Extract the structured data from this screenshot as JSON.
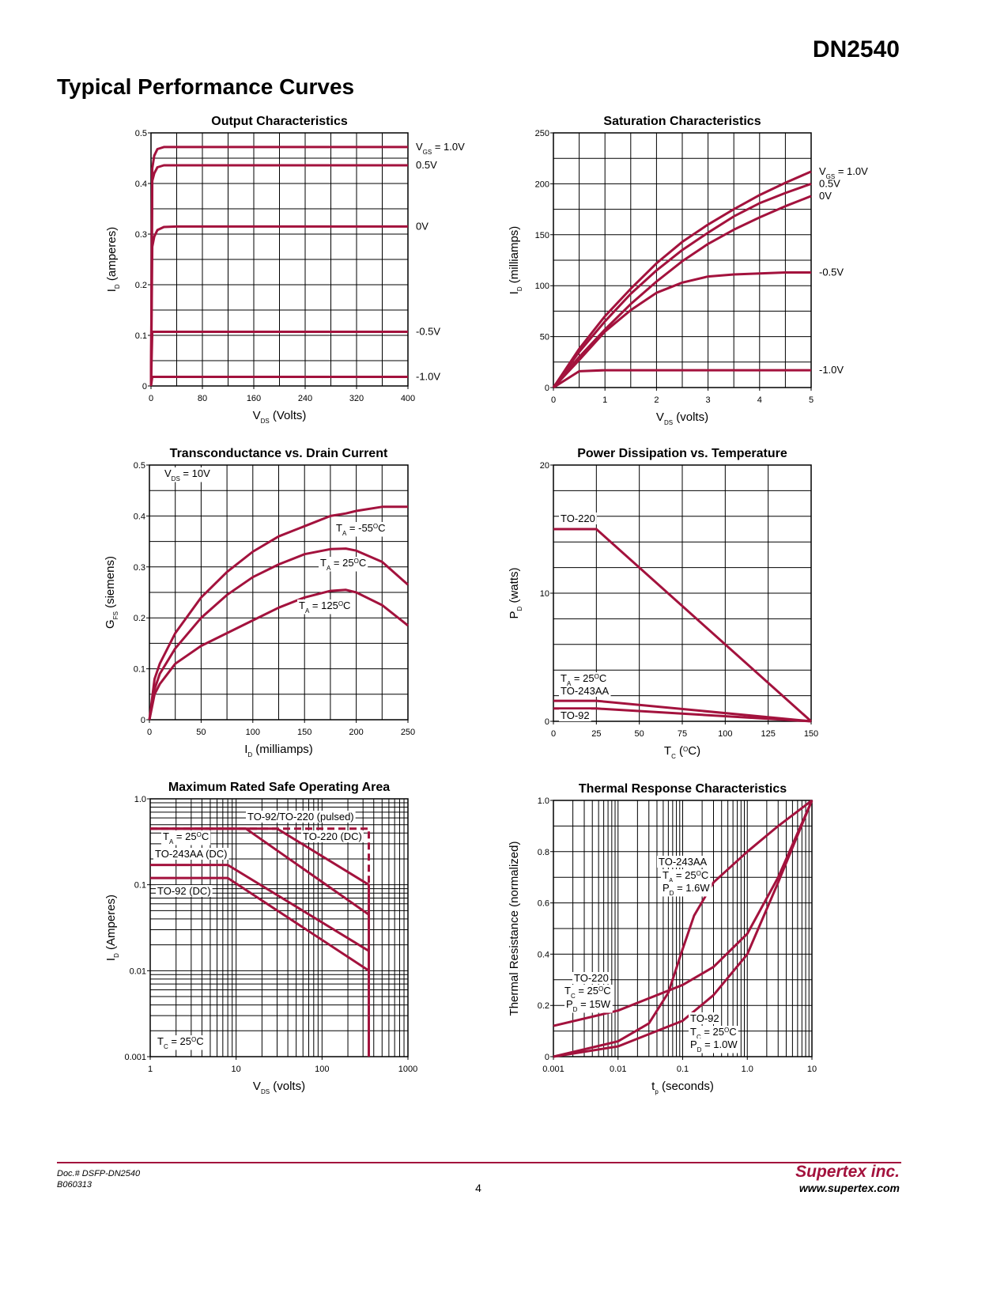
{
  "header": {
    "part": "DN2540",
    "section": "Typical Performance Curves"
  },
  "footer": {
    "doc": "Doc.# DSFP-DN2540",
    "rev": "B060313",
    "page": "4",
    "company": "Supertex inc.",
    "url": "www.supertex.com"
  },
  "chart_data": [
    {
      "type": "line",
      "title": "Output Characteristics",
      "color": "#a3123d",
      "grid": true,
      "xlabel": [
        "V",
        {
          "sub": "DS"
        },
        " (Volts)"
      ],
      "ylabel": [
        "I",
        {
          "sub": "D"
        },
        " (amperes)"
      ],
      "xlim": [
        0,
        400
      ],
      "ylim": [
        0,
        0.5
      ],
      "xticks": [
        0,
        80,
        160,
        240,
        320,
        400
      ],
      "yticks": [
        0,
        0.1,
        0.2,
        0.3,
        0.4,
        0.5
      ],
      "xminor": [
        40,
        120,
        200,
        280,
        360
      ],
      "yminor": [
        0.05,
        0.15,
        0.25,
        0.35,
        0.45
      ],
      "x": [
        0,
        2,
        5,
        10,
        20,
        40,
        400
      ],
      "series": [
        {
          "name": [
            "V",
            {
              "sub": "GS"
            },
            " = 1.0V"
          ],
          "values": [
            0,
            0.43,
            0.455,
            0.468,
            0.472,
            0.472,
            0.472
          ]
        },
        {
          "name": "0.5V",
          "values": [
            0,
            0.405,
            0.42,
            0.432,
            0.436,
            0.436,
            0.436
          ]
        },
        {
          "name": "0V",
          "values": [
            0,
            0.275,
            0.295,
            0.308,
            0.314,
            0.315,
            0.315
          ]
        },
        {
          "name": "-0.5V",
          "values": [
            0,
            0.107,
            0.107,
            0.107,
            0.107,
            0.107,
            0.107
          ]
        },
        {
          "name": "-1.0V",
          "values": [
            0,
            0.018,
            0.018,
            0.018,
            0.018,
            0.018,
            0.018
          ]
        }
      ]
    },
    {
      "type": "line",
      "title": "Saturation Characteristics",
      "color": "#a3123d",
      "grid": true,
      "xlabel": [
        "V",
        {
          "sub": "DS"
        },
        " (volts)"
      ],
      "ylabel": [
        "I",
        {
          "sub": "D"
        },
        " (milliamps)"
      ],
      "xlim": [
        0,
        5
      ],
      "ylim": [
        0,
        250
      ],
      "xticks": [
        0,
        1,
        2,
        3,
        4,
        5
      ],
      "yticks": [
        0,
        50,
        100,
        150,
        200,
        250
      ],
      "xminor": [
        0.5,
        1.5,
        2.5,
        3.5,
        4.5
      ],
      "yminor": [
        25,
        75,
        125,
        175,
        225
      ],
      "x": [
        0,
        0.5,
        1,
        1.5,
        2,
        2.5,
        3,
        3.5,
        4,
        4.5,
        5
      ],
      "series": [
        {
          "name": [
            "V",
            {
              "sub": "GS"
            },
            " = 1.0V"
          ],
          "values": [
            0,
            38,
            70,
            97,
            122,
            143,
            160,
            175,
            189,
            201,
            212
          ]
        },
        {
          "name": "0.5V",
          "values": [
            0,
            35,
            65,
            92,
            115,
            135,
            152,
            168,
            181,
            191,
            200
          ]
        },
        {
          "name": "0V",
          "values": [
            0,
            30,
            57,
            82,
            104,
            124,
            141,
            155,
            167,
            178,
            188
          ]
        },
        {
          "name": "-0.5V",
          "values": [
            0,
            27,
            55,
            76,
            93,
            103,
            109,
            111,
            112,
            113,
            113
          ]
        },
        {
          "name": "-1.0V",
          "values": [
            0,
            16,
            17,
            17,
            17,
            17,
            17,
            17,
            17,
            17,
            17
          ]
        }
      ]
    },
    {
      "type": "line",
      "title": "Transconductance vs. Drain Current",
      "color": "#a3123d",
      "grid": true,
      "xlabel": [
        "I",
        {
          "sub": "D"
        },
        " (milliamps)"
      ],
      "ylabel": [
        "G",
        {
          "sub": "FS"
        },
        " (siemens)"
      ],
      "xlim": [
        0,
        250
      ],
      "ylim": [
        0,
        0.5
      ],
      "xticks": [
        0,
        50,
        100,
        150,
        200,
        250
      ],
      "yticks": [
        0,
        0.1,
        0.2,
        0.3,
        0.4,
        0.5
      ],
      "xminor": [
        25,
        75,
        125,
        175,
        225
      ],
      "yminor": [
        0.05,
        0.15,
        0.25,
        0.35,
        0.45
      ],
      "annotations": [
        [
          "V",
          {
            "sub": "DS"
          },
          " = 10V"
        ]
      ],
      "x": [
        0,
        5,
        10,
        25,
        50,
        75,
        100,
        125,
        150,
        175,
        190,
        200,
        225,
        250
      ],
      "series": [
        {
          "name": [
            "T",
            {
              "sub": "A"
            },
            " = -55",
            {
              "sup": "O"
            },
            "C"
          ],
          "values": [
            0,
            0.08,
            0.11,
            0.17,
            0.24,
            0.29,
            0.33,
            0.36,
            0.38,
            0.4,
            0.405,
            0.41,
            0.418,
            0.418
          ]
        },
        {
          "name": [
            "T",
            {
              "sub": "A"
            },
            " = 25",
            {
              "sup": "O"
            },
            "C"
          ],
          "values": [
            0,
            0.06,
            0.09,
            0.14,
            0.2,
            0.245,
            0.28,
            0.305,
            0.325,
            0.335,
            0.336,
            0.332,
            0.31,
            0.265
          ]
        },
        {
          "name": [
            "T",
            {
              "sub": "A"
            },
            " = 125",
            {
              "sup": "O"
            },
            "C"
          ],
          "values": [
            0,
            0.05,
            0.07,
            0.11,
            0.145,
            0.17,
            0.195,
            0.22,
            0.24,
            0.253,
            0.255,
            0.25,
            0.225,
            0.185
          ]
        }
      ]
    },
    {
      "type": "line",
      "title": "Power Dissipation vs. Temperature",
      "color": "#a3123d",
      "grid": true,
      "xlabel": [
        "T",
        {
          "sub": "C"
        },
        " (",
        {
          "sup": "O"
        },
        "C)"
      ],
      "ylabel": [
        "P",
        {
          "sub": "D"
        },
        " (watts)"
      ],
      "xlim": [
        0,
        150
      ],
      "ylim": [
        0,
        20
      ],
      "xticks": [
        0,
        25,
        50,
        75,
        100,
        125,
        150
      ],
      "yticks": [
        0,
        10,
        20
      ],
      "xminor": [],
      "yminor": [
        2,
        4,
        6,
        8,
        12,
        14,
        16,
        18
      ],
      "annotations": [
        [
          "T",
          {
            "sub": "A"
          },
          " = 25",
          {
            "sup": "O"
          },
          "C"
        ]
      ],
      "x": [
        0,
        25,
        150
      ],
      "series": [
        {
          "name": "TO-220",
          "values": [
            15,
            15,
            0
          ]
        },
        {
          "name": "TO-243AA",
          "values": [
            1.6,
            1.6,
            0
          ]
        },
        {
          "name": "TO-92",
          "values": [
            1,
            1,
            0
          ]
        }
      ]
    },
    {
      "type": "line",
      "title": "Maximum Rated Safe Operating Area",
      "color": "#a3123d",
      "grid": true,
      "xscale": "log",
      "yscale": "log",
      "xlabel": [
        "V",
        {
          "sub": "DS"
        },
        " (volts)"
      ],
      "ylabel": [
        "I",
        {
          "sub": "D"
        },
        " (Amperes)"
      ],
      "xlim": [
        1,
        1000
      ],
      "ylim": [
        0.001,
        1
      ],
      "xticks": [
        1,
        10,
        100,
        1000
      ],
      "yticks": [
        0.001,
        0.01,
        0.1,
        {
          "value": 1,
          "label": "1.0"
        }
      ],
      "xminor": [
        2,
        3,
        4,
        5,
        6,
        7,
        8,
        9,
        20,
        30,
        40,
        50,
        60,
        70,
        80,
        90,
        200,
        300,
        400,
        500,
        600,
        700,
        800,
        900
      ],
      "yminor": [
        0.002,
        0.003,
        0.004,
        0.005,
        0.006,
        0.007,
        0.008,
        0.009,
        0.02,
        0.03,
        0.04,
        0.05,
        0.06,
        0.07,
        0.08,
        0.09,
        0.2,
        0.3,
        0.4,
        0.5,
        0.6,
        0.7,
        0.8,
        0.9
      ],
      "annotations": [
        [
          "T",
          {
            "sub": "A"
          },
          " = 25",
          {
            "sup": "O"
          },
          "C"
        ],
        [
          "T",
          {
            "sub": "C"
          },
          " = 25",
          {
            "sup": "O"
          },
          "C"
        ]
      ],
      "series": [
        {
          "name": "TO-92/TO-220 (pulsed)",
          "dash": true,
          "x": [
            1,
            350,
            350
          ],
          "values": [
            0.45,
            0.45,
            0.1
          ]
        },
        {
          "name": "TO-220 (DC)",
          "x": [
            1,
            30,
            350,
            350
          ],
          "values": [
            0.45,
            0.45,
            0.1,
            0.001
          ]
        },
        {
          "x": [
            1,
            13,
            350
          ],
          "values": [
            0.45,
            0.45,
            0.045
          ]
        },
        {
          "name": "TO-243AA (DC)",
          "x": [
            1,
            8,
            350
          ],
          "values": [
            0.17,
            0.17,
            0.017
          ]
        },
        {
          "name": "TO-92 (DC)",
          "x": [
            1,
            8,
            350
          ],
          "values": [
            0.12,
            0.12,
            0.01
          ]
        }
      ]
    },
    {
      "type": "line",
      "title": "Thermal Response Characteristics",
      "color": "#a3123d",
      "grid": true,
      "xscale": "log",
      "xlabel": [
        "t",
        {
          "sub": "p"
        },
        " (seconds)"
      ],
      "ylabel": "Thermal Resistance (normalized)",
      "xlim": [
        0.001,
        10
      ],
      "ylim": [
        0,
        1
      ],
      "xticks": [
        0.001,
        0.01,
        0.1,
        {
          "value": 1,
          "label": "1.0"
        },
        10
      ],
      "yticks": [
        0,
        0.2,
        0.4,
        0.6,
        0.8,
        {
          "value": 1,
          "label": "1.0"
        }
      ],
      "xminor": [
        0.002,
        0.003,
        0.004,
        0.005,
        0.006,
        0.007,
        0.008,
        0.009,
        0.02,
        0.03,
        0.04,
        0.05,
        0.06,
        0.07,
        0.08,
        0.09,
        0.2,
        0.3,
        0.4,
        0.5,
        0.6,
        0.7,
        0.8,
        0.9,
        2,
        3,
        4,
        5,
        6,
        7,
        8,
        9
      ],
      "yminor": [
        0.1,
        0.3,
        0.5,
        0.7,
        0.9
      ],
      "annotations": [
        [
          "T",
          {
            "sub": "A"
          },
          " = 25",
          {
            "sup": "O"
          },
          "C"
        ],
        [
          "P",
          {
            "sub": "D"
          },
          " = 1.6W"
        ],
        [
          "T",
          {
            "sub": "C"
          },
          " = 25",
          {
            "sup": "O"
          },
          "C"
        ],
        [
          "P",
          {
            "sub": "D"
          },
          " = 15W"
        ],
        [
          "T",
          {
            "sub": "C"
          },
          " = 25",
          {
            "sup": "O"
          },
          "C"
        ],
        [
          "P",
          {
            "sub": "D"
          },
          " = 1.0W"
        ]
      ],
      "series": [
        {
          "name": "TO-243AA",
          "x": [
            0.001,
            0.01,
            0.03,
            0.06,
            0.1,
            0.15,
            0.3,
            1,
            3,
            10
          ],
          "values": [
            0,
            0.06,
            0.13,
            0.25,
            0.42,
            0.55,
            0.68,
            0.8,
            0.9,
            1
          ]
        },
        {
          "name": "TO-220",
          "x": [
            0.001,
            0.01,
            0.1,
            0.3,
            1,
            3,
            10
          ],
          "values": [
            0.12,
            0.18,
            0.28,
            0.35,
            0.48,
            0.7,
            1
          ]
        },
        {
          "name": "TO-92",
          "x": [
            0.001,
            0.01,
            0.1,
            0.3,
            1,
            3,
            10
          ],
          "values": [
            0,
            0.04,
            0.14,
            0.24,
            0.4,
            0.68,
            1
          ]
        }
      ]
    }
  ]
}
